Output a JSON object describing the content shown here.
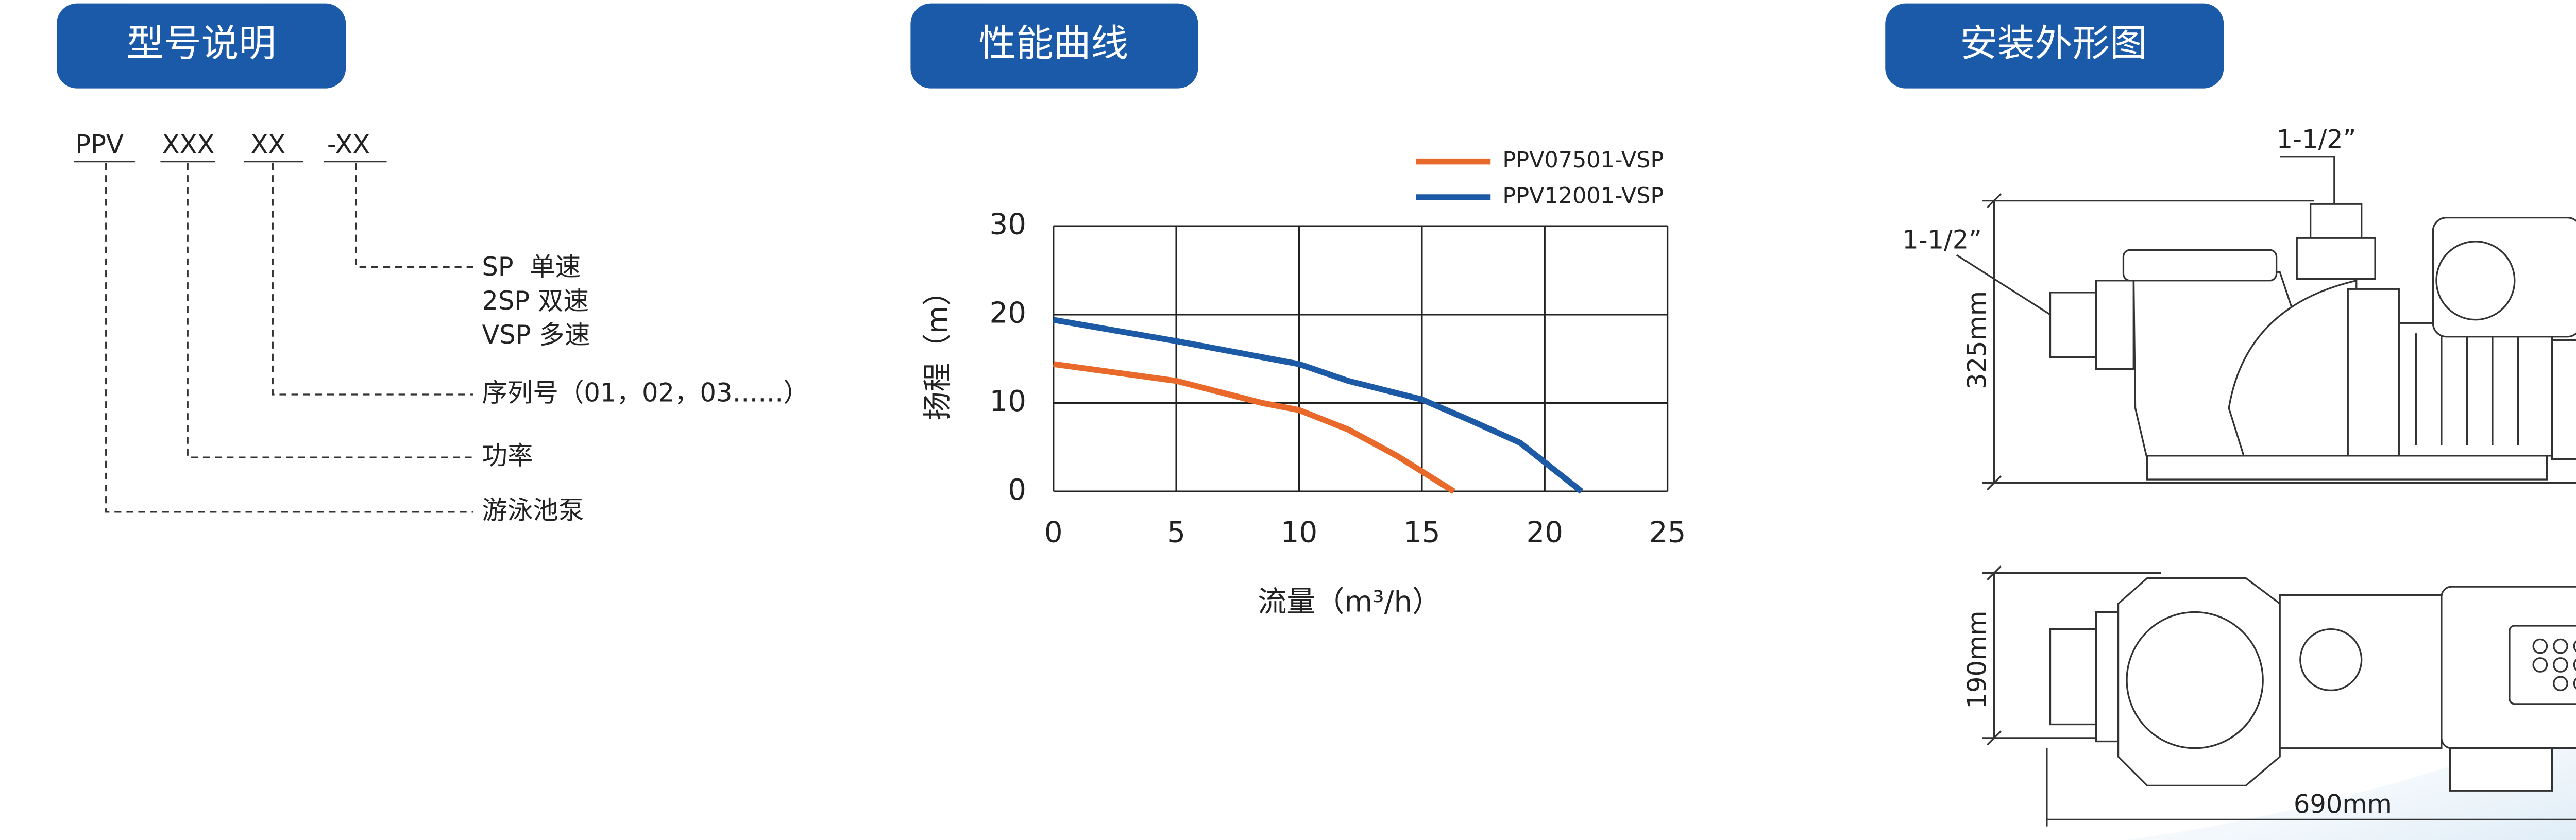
{
  "sections": [
    {
      "title": "型号说明"
    },
    {
      "title": "性能曲线"
    },
    {
      "title": "安装外形图"
    }
  ],
  "model": {
    "code_parts": [
      "PPV",
      "XXX",
      "XX",
      "-XX"
    ],
    "speed_types": [
      "SP  单速",
      "2SP 双速",
      "VSP 多速"
    ],
    "serial": "序列号（01，02，03……）",
    "power": "功率",
    "product": "游泳池泵"
  },
  "chart_data": {
    "type": "line",
    "x_label": "流量（m³/h）",
    "y_label": "扬程（m）",
    "xlim": [
      0,
      25
    ],
    "xticks": [
      0,
      5,
      10,
      15,
      20,
      25
    ],
    "ylim": [
      0,
      30
    ],
    "yticks": [
      0,
      10,
      20,
      30
    ],
    "grid": true,
    "legend": "top-right",
    "series": [
      {
        "name": "PPV07501-VSP",
        "color": "#e8692a",
        "x": [
          0,
          5,
          8.5,
          10,
          12,
          14,
          16.3
        ],
        "values": [
          14.4,
          12.5,
          10,
          9.2,
          7,
          4,
          0
        ]
      },
      {
        "name": "PPV12001-VSP",
        "color": "#1d5aa6",
        "x": [
          0,
          5,
          10,
          12,
          15,
          17,
          19,
          21.5
        ],
        "values": [
          19.4,
          17,
          14.4,
          12.5,
          10.4,
          8,
          5.5,
          0
        ]
      }
    ]
  },
  "dimensions": {
    "outlet": "1-1/2”",
    "inlet": "1-1/2”",
    "height": "325mm",
    "width": "190mm",
    "length": "690mm"
  }
}
